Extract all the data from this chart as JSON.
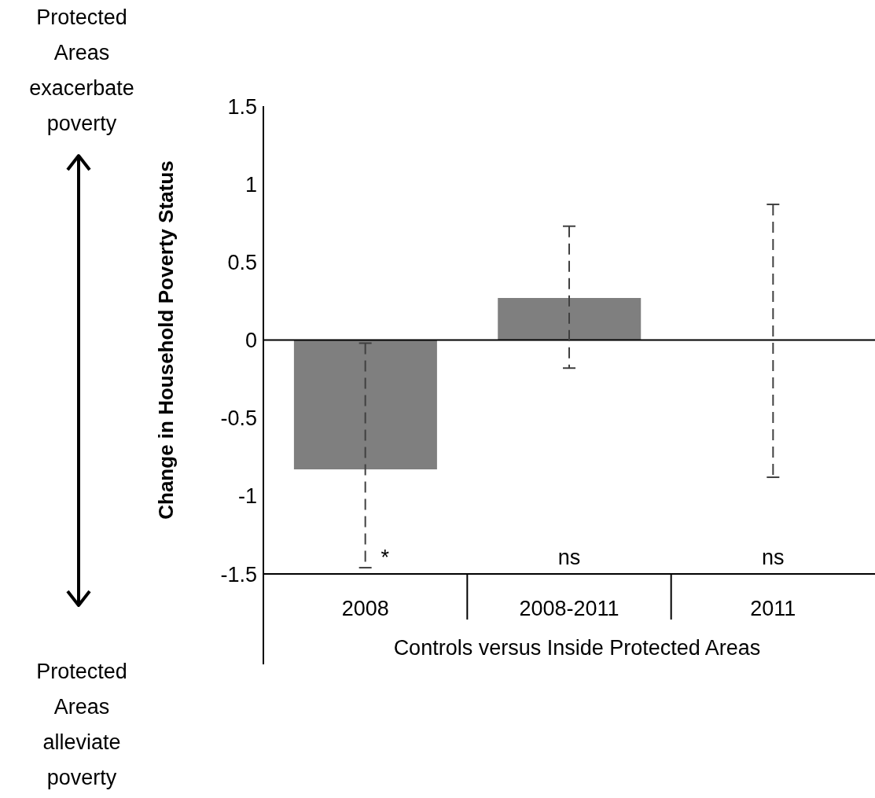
{
  "chart_data": {
    "type": "bar",
    "ylabel": "Change in Household Poverty Status",
    "xlabel": "Controls versus Inside Protected Areas",
    "categories": [
      "2008",
      "2008-2011",
      "2011"
    ],
    "values": [
      -0.83,
      0.27,
      0
    ],
    "color": "#7f7f7f",
    "errors": [
      [
        -1.46,
        -0.02
      ],
      [
        -0.18,
        0.73
      ],
      [
        -0.88,
        0.87
      ]
    ],
    "ylim": [
      -1.5,
      1.5
    ],
    "yticks": [
      -1.5,
      -1,
      -0.5,
      0,
      0.5,
      1,
      1.5
    ],
    "ref_lines": [
      {
        "axis": "y",
        "value": 0,
        "color": "#000000"
      }
    ],
    "grid": false,
    "legend": false,
    "annotations": [
      "*",
      "ns",
      "ns",
      "Protected Areas exacerbate poverty",
      "Protected Areas alleviate poverty"
    ]
  }
}
